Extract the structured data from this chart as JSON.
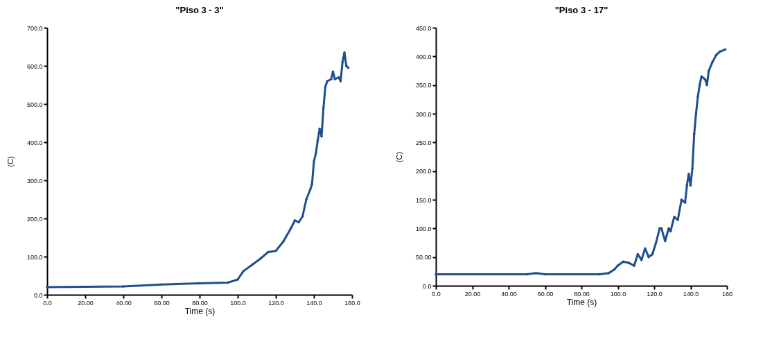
{
  "chart_data": [
    {
      "type": "line",
      "title": "\"Piso 3 - 3\"",
      "xlabel": "Time (s)",
      "ylabel": "(C)",
      "marker": "diamond",
      "line_style": "solid",
      "grid": false,
      "xlim": [
        0,
        160
      ],
      "xticks": [
        {
          "value": 0,
          "label": "0.0"
        },
        {
          "value": 20,
          "label": "20.00"
        },
        {
          "value": 40,
          "label": "40.00"
        },
        {
          "value": 60,
          "label": "60.00"
        },
        {
          "value": 80,
          "label": "80.00"
        },
        {
          "value": 100,
          "label": "100.0"
        },
        {
          "value": 120,
          "label": "120.0"
        },
        {
          "value": 140,
          "label": "140.0"
        },
        {
          "value": 160,
          "label": "160.0"
        }
      ],
      "ylim": [
        0,
        700
      ],
      "yticks": [
        {
          "value": 0,
          "label": "0.0"
        },
        {
          "value": 100,
          "label": "100.0"
        },
        {
          "value": 200,
          "label": "200.0"
        },
        {
          "value": 300,
          "label": "300.0"
        },
        {
          "value": 400,
          "label": "400.0"
        },
        {
          "value": 500,
          "label": "500.0"
        },
        {
          "value": 600,
          "label": "600.0"
        },
        {
          "value": 700,
          "label": "700.0"
        }
      ],
      "x": [
        0,
        40,
        60,
        80,
        95,
        100,
        103,
        108,
        112,
        116,
        120,
        124,
        128,
        130,
        132,
        134,
        136,
        138,
        139,
        140,
        141,
        142,
        143,
        144,
        145,
        146,
        147,
        149,
        150,
        151,
        153,
        154,
        155,
        156,
        157,
        158
      ],
      "series": [
        {
          "color": "#1f4e8c",
          "values": [
            20,
            22,
            27,
            30,
            32,
            40,
            62,
            80,
            95,
            112,
            115,
            140,
            175,
            195,
            190,
            205,
            250,
            275,
            290,
            350,
            370,
            405,
            435,
            415,
            490,
            545,
            560,
            565,
            585,
            565,
            570,
            560,
            610,
            635,
            600,
            595
          ]
        }
      ]
    },
    {
      "type": "line",
      "title": "\"Piso 3 - 17\"",
      "xlabel": "Time (s)",
      "ylabel": "(C)",
      "marker": "diamond",
      "line_style": "solid",
      "grid": false,
      "xlim": [
        0,
        160
      ],
      "xticks": [
        {
          "value": 0,
          "label": "0.0"
        },
        {
          "value": 20,
          "label": "20.00"
        },
        {
          "value": 40,
          "label": "40.00"
        },
        {
          "value": 60,
          "label": "60.00"
        },
        {
          "value": 80,
          "label": "80.00"
        },
        {
          "value": 100,
          "label": "100.0"
        },
        {
          "value": 120,
          "label": "120.0"
        },
        {
          "value": 140,
          "label": "140.0"
        },
        {
          "value": 160,
          "label": "160"
        }
      ],
      "ylim": [
        0,
        450
      ],
      "yticks": [
        {
          "value": 0,
          "label": "0.0"
        },
        {
          "value": 50,
          "label": "50.00"
        },
        {
          "value": 100,
          "label": "100.0"
        },
        {
          "value": 150,
          "label": "150.0"
        },
        {
          "value": 200,
          "label": "200.0"
        },
        {
          "value": 250,
          "label": "250.0"
        },
        {
          "value": 300,
          "label": "300.0"
        },
        {
          "value": 350,
          "label": "350.0"
        },
        {
          "value": 400,
          "label": "400.0"
        },
        {
          "value": 450,
          "label": "450.0"
        }
      ],
      "x": [
        0,
        50,
        55,
        60,
        90,
        95,
        98,
        100,
        103,
        106,
        109,
        111,
        113,
        115,
        117,
        119,
        121,
        123,
        124,
        126,
        128,
        129,
        131,
        133,
        135,
        137,
        138,
        139,
        140,
        141,
        142,
        143,
        144,
        145,
        146,
        148,
        149,
        150,
        152,
        154,
        156,
        159
      ],
      "series": [
        {
          "color": "#1f4e8c",
          "values": [
            20,
            20,
            22,
            20,
            20,
            22,
            28,
            35,
            42,
            40,
            35,
            55,
            45,
            65,
            50,
            55,
            75,
            100,
            100,
            78,
            100,
            95,
            120,
            115,
            150,
            145,
            175,
            195,
            175,
            205,
            265,
            300,
            330,
            350,
            365,
            360,
            350,
            375,
            390,
            402,
            408,
            412
          ]
        }
      ]
    }
  ]
}
